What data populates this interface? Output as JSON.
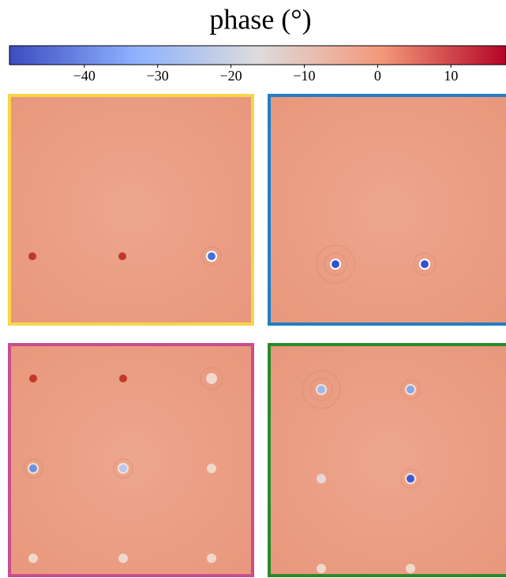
{
  "chart_data": {
    "type": "colorbar",
    "title": "phase (°)",
    "xlim": [
      -50.2,
      17.5
    ],
    "xticks": [
      {
        "value": -40,
        "label": "−40"
      },
      {
        "value": -30,
        "label": "−30"
      },
      {
        "value": -20,
        "label": "−20"
      },
      {
        "value": -10,
        "label": "−10"
      },
      0,
      10
    ]
  }
}
